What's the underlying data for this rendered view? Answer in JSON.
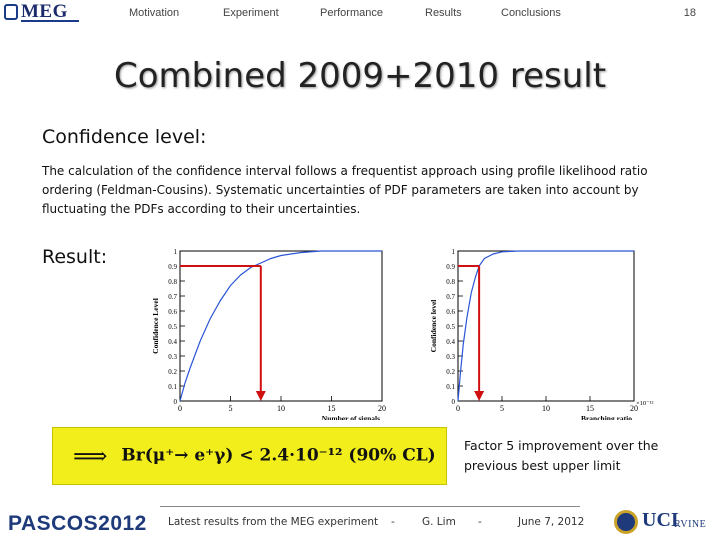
{
  "header": {
    "logo_text": "MEG",
    "nav": [
      "Motivation",
      "Experiment",
      "Performance",
      "Results",
      "Conclusions"
    ],
    "page_number": "18"
  },
  "title": "Combined 2009+2010 result",
  "confidence_heading": "Confidence level:",
  "confidence_text": "The calculation of the confidence interval follows a frequentist approach using profile likelihood ratio ordering (Feldman-Cousins). Systematic uncertainties of PDF parameters are taken into account by fluctuating the PDFs according to their uncertainties.",
  "result_heading": "Result:",
  "chart_data": [
    {
      "type": "line",
      "xlabel": "Number of signals",
      "ylabel": "Confidence Level",
      "xlim": [
        0,
        20
      ],
      "ylim": [
        0,
        1
      ],
      "x_ticks": [
        "0",
        "5",
        "10",
        "15",
        "20"
      ],
      "y_ticks": [
        "0",
        "0.1",
        "0.2",
        "0.3",
        "0.4",
        "0.5",
        "0.6",
        "0.7",
        "0.8",
        "0.9",
        "1"
      ],
      "series": [
        {
          "x": [
            0,
            0.5,
            1,
            2,
            3,
            4,
            5,
            6,
            7,
            8,
            9,
            10,
            12,
            14,
            16,
            18,
            20
          ],
          "y": [
            0.0,
            0.12,
            0.22,
            0.4,
            0.55,
            0.67,
            0.77,
            0.84,
            0.89,
            0.92,
            0.95,
            0.97,
            0.99,
            1.0,
            1.0,
            1.0,
            1.0
          ]
        }
      ],
      "cl_marker": {
        "x": 8,
        "y": 0.9
      }
    },
    {
      "type": "line",
      "xlabel": "Branching ratio",
      "ylabel": "Confidence level",
      "x_multiplier": "×10⁻¹²",
      "xlim": [
        0,
        20
      ],
      "ylim": [
        0,
        1
      ],
      "x_ticks": [
        "0",
        "5",
        "10",
        "15",
        "20"
      ],
      "y_ticks": [
        "0",
        "0.1",
        "0.2",
        "0.3",
        "0.4",
        "0.5",
        "0.6",
        "0.7",
        "0.8",
        "0.9",
        "1"
      ],
      "series": [
        {
          "x": [
            0,
            0.3,
            0.6,
            1,
            1.5,
            2,
            2.4,
            3,
            4,
            5,
            7,
            10,
            15,
            20
          ],
          "y": [
            0.0,
            0.2,
            0.38,
            0.55,
            0.72,
            0.83,
            0.9,
            0.95,
            0.98,
            0.995,
            1.0,
            1.0,
            1.0,
            1.0
          ]
        }
      ],
      "cl_marker": {
        "x": 2.4,
        "y": 0.9
      }
    }
  ],
  "formula": {
    "arrow": "⟹",
    "lhs": "Br(μ⁺→ e⁺γ) < 2.4·10⁻¹² (90% CL)"
  },
  "improvement_note": "Factor 5 improvement over the previous best upper limit",
  "footer": {
    "conference": "PASCOS",
    "conference_year": "2012",
    "talk_title": "Latest results from the MEG experiment",
    "sep1": "-",
    "author": "G. Lim",
    "sep2": "-",
    "date": "June 7, 2012",
    "institution": "UCI",
    "institution_sub": "RVINE"
  }
}
